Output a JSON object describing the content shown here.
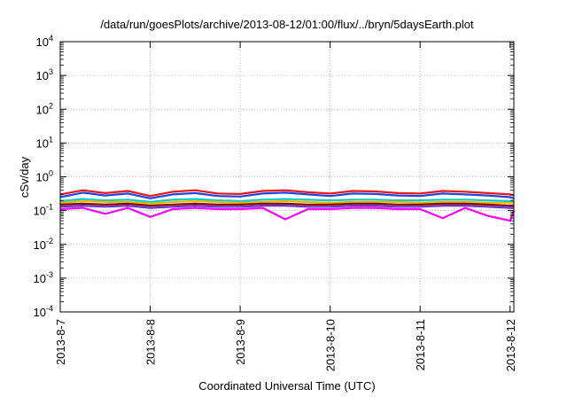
{
  "chart_data": {
    "type": "line",
    "title": "/data/run/goesPlots/archive/2013-08-12/01:00/flux/../bryn/5daysEarth.plot",
    "xlabel": "Coordinated Universal Time (UTC)",
    "ylabel": "cSv/day",
    "yscale": "log",
    "ylim": [
      0.0001,
      10000
    ],
    "xlim": [
      "2013-08-07T00:00",
      "2013-08-12T01:00"
    ],
    "grid": true,
    "legend": "none",
    "yticks": [
      {
        "value": 0.0001,
        "base": "10",
        "exp": "-4"
      },
      {
        "value": 0.001,
        "base": "10",
        "exp": "-3"
      },
      {
        "value": 0.01,
        "base": "10",
        "exp": "-2"
      },
      {
        "value": 0.1,
        "base": "10",
        "exp": "-1"
      },
      {
        "value": 1,
        "base": "10",
        "exp": "0"
      },
      {
        "value": 10,
        "base": "10",
        "exp": "1"
      },
      {
        "value": 100,
        "base": "10",
        "exp": "2"
      },
      {
        "value": 1000,
        "base": "10",
        "exp": "3"
      },
      {
        "value": 10000,
        "base": "10",
        "exp": "4"
      }
    ],
    "xticks": [
      {
        "value": "2013-08-07T00:00",
        "label": "2013-8-7"
      },
      {
        "value": "2013-08-08T00:00",
        "label": "2013-8-8"
      },
      {
        "value": "2013-08-09T00:00",
        "label": "2013-8-9"
      },
      {
        "value": "2013-08-10T00:00",
        "label": "2013-8-10"
      },
      {
        "value": "2013-08-11T00:00",
        "label": "2013-8-11"
      },
      {
        "value": "2013-08-12T00:00",
        "label": "2013-8-12"
      }
    ],
    "series": [
      {
        "color": "#e41a1c",
        "values": [
          [
            "2013-08-07T00:00",
            0.3
          ],
          [
            "2013-08-07T06:00",
            0.4
          ],
          [
            "2013-08-07T12:00",
            0.33
          ],
          [
            "2013-08-07T18:00",
            0.38
          ],
          [
            "2013-08-08T00:00",
            0.27
          ],
          [
            "2013-08-08T06:00",
            0.36
          ],
          [
            "2013-08-08T12:00",
            0.4
          ],
          [
            "2013-08-08T18:00",
            0.32
          ],
          [
            "2013-08-09T00:00",
            0.31
          ],
          [
            "2013-08-09T06:00",
            0.38
          ],
          [
            "2013-08-09T12:00",
            0.4
          ],
          [
            "2013-08-09T18:00",
            0.35
          ],
          [
            "2013-08-10T00:00",
            0.32
          ],
          [
            "2013-08-10T06:00",
            0.38
          ],
          [
            "2013-08-10T12:00",
            0.37
          ],
          [
            "2013-08-10T18:00",
            0.33
          ],
          [
            "2013-08-11T00:00",
            0.32
          ],
          [
            "2013-08-11T06:00",
            0.38
          ],
          [
            "2013-08-11T12:00",
            0.36
          ],
          [
            "2013-08-11T18:00",
            0.33
          ],
          [
            "2013-08-12T00:00",
            0.3
          ],
          [
            "2013-08-12T01:00",
            0.28
          ]
        ]
      },
      {
        "color": "#2244dd",
        "values": [
          [
            "2013-08-07T00:00",
            0.25
          ],
          [
            "2013-08-07T06:00",
            0.34
          ],
          [
            "2013-08-07T12:00",
            0.28
          ],
          [
            "2013-08-07T18:00",
            0.32
          ],
          [
            "2013-08-08T00:00",
            0.23
          ],
          [
            "2013-08-08T06:00",
            0.3
          ],
          [
            "2013-08-08T12:00",
            0.33
          ],
          [
            "2013-08-08T18:00",
            0.27
          ],
          [
            "2013-08-09T00:00",
            0.26
          ],
          [
            "2013-08-09T06:00",
            0.32
          ],
          [
            "2013-08-09T12:00",
            0.34
          ],
          [
            "2013-08-09T18:00",
            0.3
          ],
          [
            "2013-08-10T00:00",
            0.27
          ],
          [
            "2013-08-10T06:00",
            0.32
          ],
          [
            "2013-08-10T12:00",
            0.31
          ],
          [
            "2013-08-10T18:00",
            0.28
          ],
          [
            "2013-08-11T00:00",
            0.27
          ],
          [
            "2013-08-11T06:00",
            0.32
          ],
          [
            "2013-08-11T12:00",
            0.3
          ],
          [
            "2013-08-11T18:00",
            0.28
          ],
          [
            "2013-08-12T00:00",
            0.25
          ],
          [
            "2013-08-12T01:00",
            0.23
          ]
        ]
      },
      {
        "color": "#00cccc",
        "values": [
          [
            "2013-08-07T00:00",
            0.19
          ],
          [
            "2013-08-07T06:00",
            0.22
          ],
          [
            "2013-08-07T12:00",
            0.2
          ],
          [
            "2013-08-07T18:00",
            0.21
          ],
          [
            "2013-08-08T00:00",
            0.18
          ],
          [
            "2013-08-08T06:00",
            0.21
          ],
          [
            "2013-08-08T12:00",
            0.22
          ],
          [
            "2013-08-08T18:00",
            0.2
          ],
          [
            "2013-08-09T00:00",
            0.19
          ],
          [
            "2013-08-09T06:00",
            0.21
          ],
          [
            "2013-08-09T12:00",
            0.22
          ],
          [
            "2013-08-09T18:00",
            0.21
          ],
          [
            "2013-08-10T00:00",
            0.2
          ],
          [
            "2013-08-10T06:00",
            0.21
          ],
          [
            "2013-08-10T12:00",
            0.21
          ],
          [
            "2013-08-10T18:00",
            0.2
          ],
          [
            "2013-08-11T00:00",
            0.2
          ],
          [
            "2013-08-11T06:00",
            0.21
          ],
          [
            "2013-08-11T12:00",
            0.21
          ],
          [
            "2013-08-11T18:00",
            0.2
          ],
          [
            "2013-08-12T00:00",
            0.19
          ],
          [
            "2013-08-12T01:00",
            0.18
          ]
        ]
      },
      {
        "color": "#e6b800",
        "values": [
          [
            "2013-08-07T00:00",
            0.17
          ],
          [
            "2013-08-07T06:00",
            0.19
          ],
          [
            "2013-08-07T12:00",
            0.18
          ],
          [
            "2013-08-07T18:00",
            0.18
          ],
          [
            "2013-08-08T00:00",
            0.16
          ],
          [
            "2013-08-08T06:00",
            0.18
          ],
          [
            "2013-08-08T12:00",
            0.19
          ],
          [
            "2013-08-08T18:00",
            0.18
          ],
          [
            "2013-08-09T00:00",
            0.17
          ],
          [
            "2013-08-09T06:00",
            0.18
          ],
          [
            "2013-08-09T12:00",
            0.19
          ],
          [
            "2013-08-09T18:00",
            0.18
          ],
          [
            "2013-08-10T00:00",
            0.17
          ],
          [
            "2013-08-10T06:00",
            0.18
          ],
          [
            "2013-08-10T12:00",
            0.18
          ],
          [
            "2013-08-10T18:00",
            0.18
          ],
          [
            "2013-08-11T00:00",
            0.17
          ],
          [
            "2013-08-11T06:00",
            0.18
          ],
          [
            "2013-08-11T12:00",
            0.18
          ],
          [
            "2013-08-11T18:00",
            0.17
          ],
          [
            "2013-08-12T00:00",
            0.17
          ],
          [
            "2013-08-12T01:00",
            0.16
          ]
        ]
      },
      {
        "color": "#8b0000",
        "values": [
          [
            "2013-08-07T00:00",
            0.15
          ],
          [
            "2013-08-07T06:00",
            0.16
          ],
          [
            "2013-08-07T12:00",
            0.15
          ],
          [
            "2013-08-07T18:00",
            0.16
          ],
          [
            "2013-08-08T00:00",
            0.14
          ],
          [
            "2013-08-08T06:00",
            0.15
          ],
          [
            "2013-08-08T12:00",
            0.16
          ],
          [
            "2013-08-08T18:00",
            0.15
          ],
          [
            "2013-08-09T00:00",
            0.15
          ],
          [
            "2013-08-09T06:00",
            0.16
          ],
          [
            "2013-08-09T12:00",
            0.16
          ],
          [
            "2013-08-09T18:00",
            0.15
          ],
          [
            "2013-08-10T00:00",
            0.15
          ],
          [
            "2013-08-10T06:00",
            0.16
          ],
          [
            "2013-08-10T12:00",
            0.16
          ],
          [
            "2013-08-10T18:00",
            0.15
          ],
          [
            "2013-08-11T00:00",
            0.15
          ],
          [
            "2013-08-11T06:00",
            0.16
          ],
          [
            "2013-08-11T12:00",
            0.16
          ],
          [
            "2013-08-11T18:00",
            0.15
          ],
          [
            "2013-08-12T00:00",
            0.14
          ],
          [
            "2013-08-12T01:00",
            0.14
          ]
        ]
      },
      {
        "color": "#6633cc",
        "values": [
          [
            "2013-08-07T00:00",
            0.13
          ],
          [
            "2013-08-07T06:00",
            0.14
          ],
          [
            "2013-08-07T12:00",
            0.13
          ],
          [
            "2013-08-07T18:00",
            0.14
          ],
          [
            "2013-08-08T00:00",
            0.12
          ],
          [
            "2013-08-08T06:00",
            0.13
          ],
          [
            "2013-08-08T12:00",
            0.14
          ],
          [
            "2013-08-08T18:00",
            0.13
          ],
          [
            "2013-08-09T00:00",
            0.13
          ],
          [
            "2013-08-09T06:00",
            0.14
          ],
          [
            "2013-08-09T12:00",
            0.14
          ],
          [
            "2013-08-09T18:00",
            0.13
          ],
          [
            "2013-08-10T00:00",
            0.13
          ],
          [
            "2013-08-10T06:00",
            0.14
          ],
          [
            "2013-08-10T12:00",
            0.14
          ],
          [
            "2013-08-10T18:00",
            0.13
          ],
          [
            "2013-08-11T00:00",
            0.13
          ],
          [
            "2013-08-11T06:00",
            0.14
          ],
          [
            "2013-08-11T12:00",
            0.14
          ],
          [
            "2013-08-11T18:00",
            0.13
          ],
          [
            "2013-08-12T00:00",
            0.12
          ],
          [
            "2013-08-12T01:00",
            0.12
          ]
        ]
      },
      {
        "color": "#ff00ff",
        "values": [
          [
            "2013-08-07T00:00",
            0.11
          ],
          [
            "2013-08-07T06:00",
            0.12
          ],
          [
            "2013-08-07T12:00",
            0.08
          ],
          [
            "2013-08-07T18:00",
            0.12
          ],
          [
            "2013-08-08T00:00",
            0.065
          ],
          [
            "2013-08-08T06:00",
            0.11
          ],
          [
            "2013-08-08T12:00",
            0.12
          ],
          [
            "2013-08-08T18:00",
            0.11
          ],
          [
            "2013-08-09T00:00",
            0.11
          ],
          [
            "2013-08-09T06:00",
            0.12
          ],
          [
            "2013-08-09T12:00",
            0.055
          ],
          [
            "2013-08-09T18:00",
            0.11
          ],
          [
            "2013-08-10T00:00",
            0.11
          ],
          [
            "2013-08-10T06:00",
            0.12
          ],
          [
            "2013-08-10T12:00",
            0.12
          ],
          [
            "2013-08-10T18:00",
            0.11
          ],
          [
            "2013-08-11T00:00",
            0.11
          ],
          [
            "2013-08-11T06:00",
            0.06
          ],
          [
            "2013-08-11T12:00",
            0.12
          ],
          [
            "2013-08-11T18:00",
            0.07
          ],
          [
            "2013-08-12T00:00",
            0.05
          ],
          [
            "2013-08-12T01:00",
            0.1
          ]
        ]
      }
    ]
  }
}
